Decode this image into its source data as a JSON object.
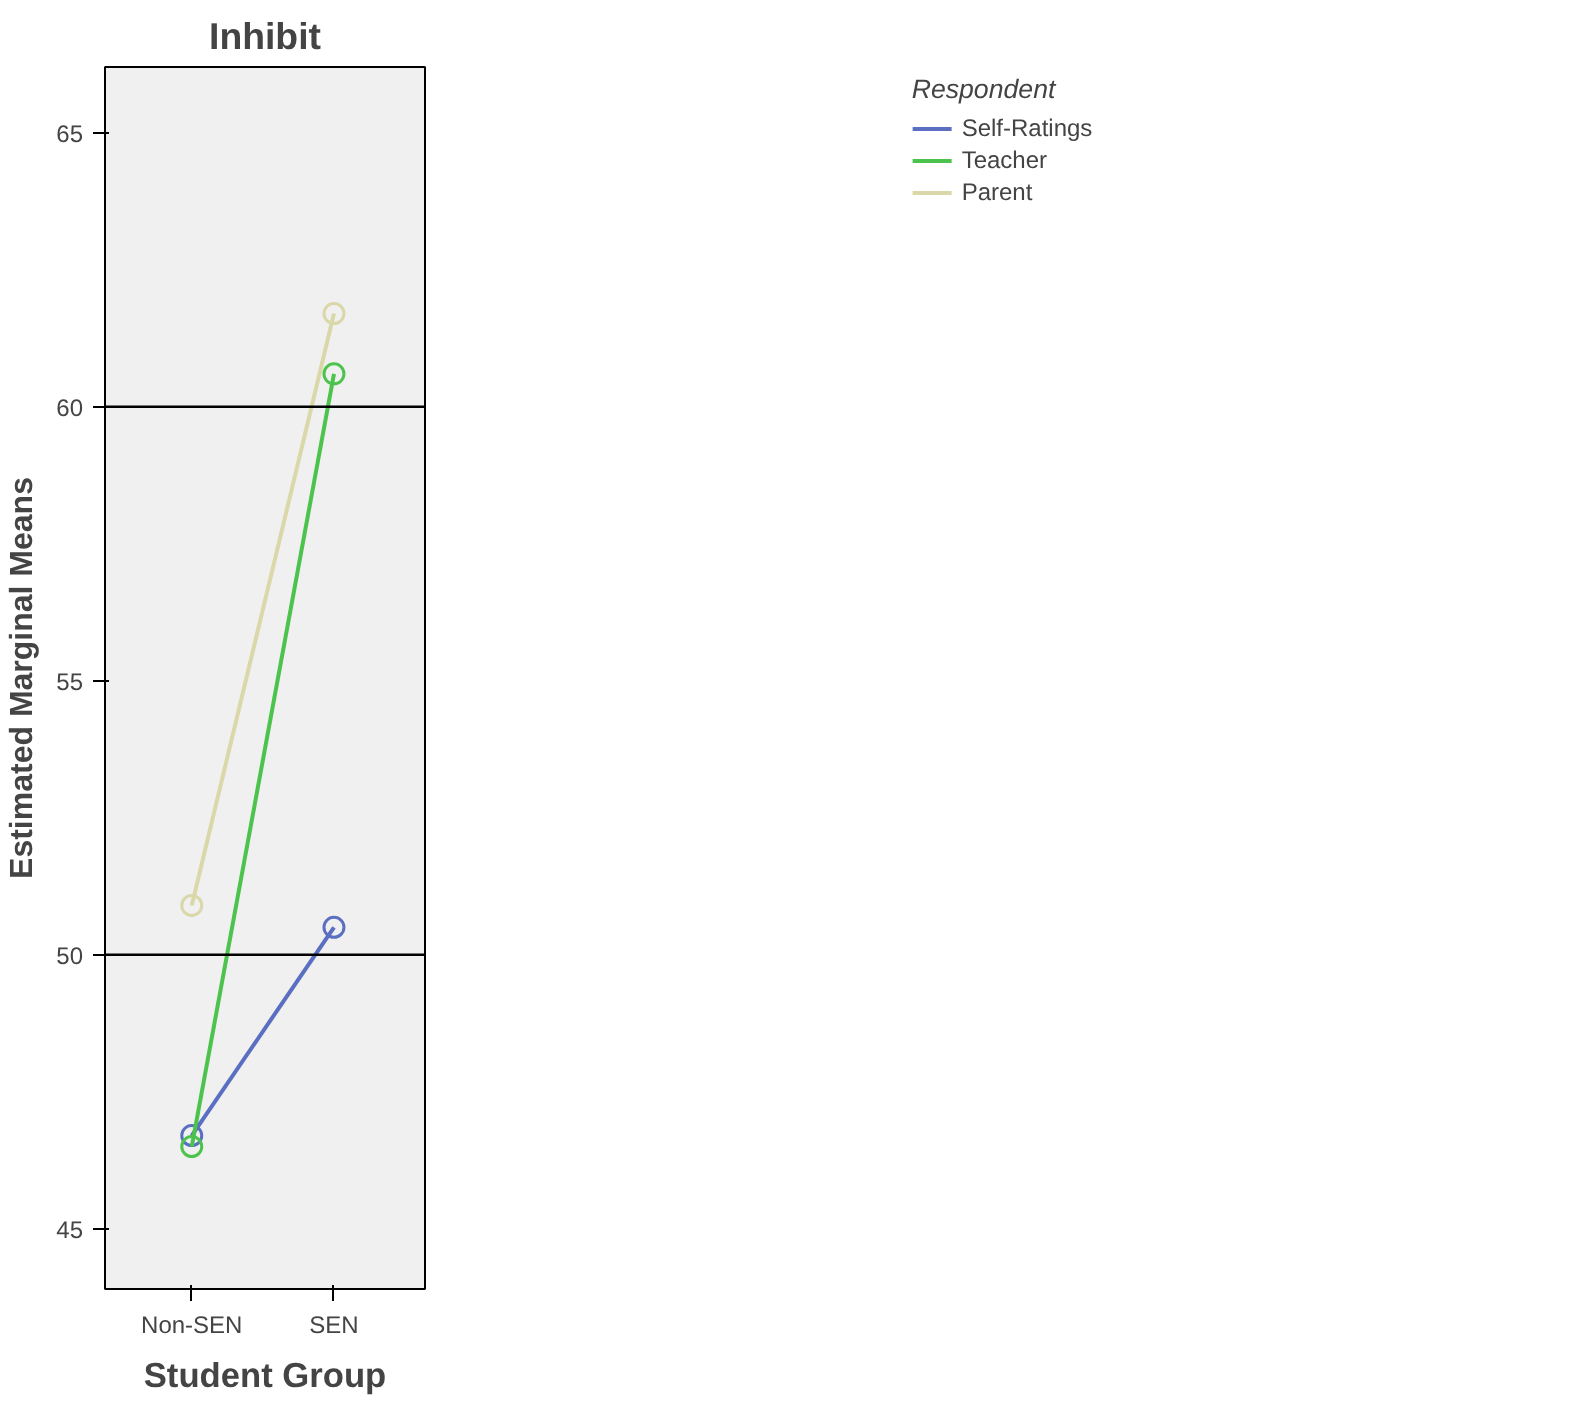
{
  "chart_data": {
    "type": "line",
    "title": "Inhibit",
    "xlabel": "Student Group",
    "ylabel": "Estimated Marginal Means",
    "legend_title": "Respondent",
    "categories": [
      "Non-SEN",
      "SEN"
    ],
    "series": [
      {
        "name": "Self-Ratings",
        "color": "#5b6fc2",
        "values": [
          46.7,
          50.5
        ]
      },
      {
        "name": "Teacher",
        "color": "#4cc34c",
        "values": [
          46.5,
          60.6
        ]
      },
      {
        "name": "Parent",
        "color": "#dad7a9",
        "values": [
          50.9,
          61.7
        ]
      }
    ],
    "ylim": [
      43.9,
      66.2
    ],
    "yticks": [
      45,
      50,
      55,
      60,
      65
    ],
    "grid": false,
    "legend": "top right",
    "marker": "circle",
    "line_style": "solid",
    "ref_lines": [
      {
        "axis": "y",
        "value": 50,
        "label": null,
        "color": "#000000"
      },
      {
        "axis": "y",
        "value": 60,
        "label": null,
        "color": "#000000"
      }
    ]
  }
}
